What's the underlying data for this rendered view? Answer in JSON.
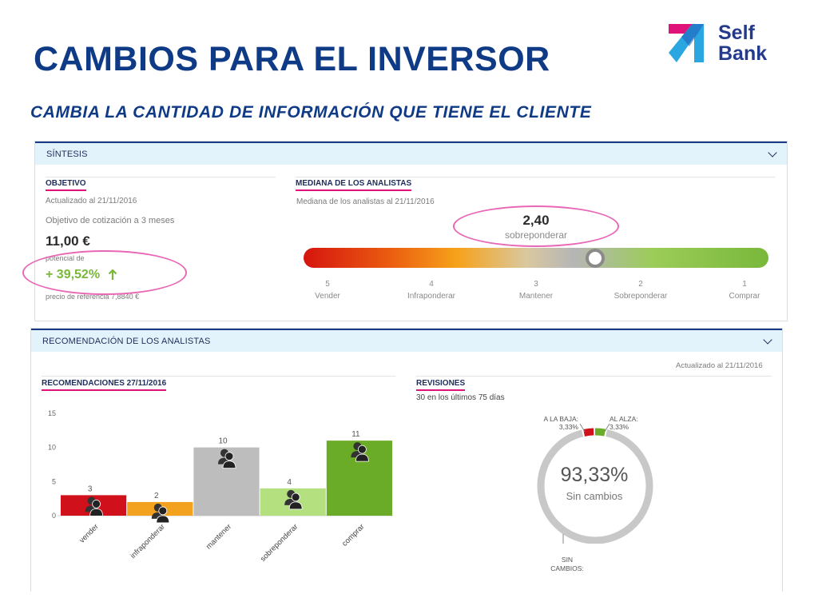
{
  "slide": {
    "title": "CAMBIOS PARA EL INVERSOR",
    "subtitle": "CAMBIA LA CANTIDAD DE INFORMACIÓN QUE TIENE EL CLIENTE"
  },
  "logo": {
    "line1": "Self",
    "line2": "Bank",
    "colors": {
      "magenta": "#e0127a",
      "blue": "#2aa6e0",
      "navy": "#243a8c"
    }
  },
  "synthesis": {
    "header": "SÍNTESIS",
    "objective": {
      "title": "OBJETIVO",
      "updated": "Actualizado al 21/11/2016",
      "target_label": "Objetivo de cotización a 3 meses",
      "target_value": "11,00 €",
      "potential_label": "potencial de",
      "potential_value": "+ 39,52%",
      "potential_icon": "arrow-up-icon",
      "reference": "precio de referencia 7,8840 €"
    },
    "median": {
      "title": "MEDIANA DE LOS ANALISTAS",
      "subtitle": "Mediana de los analistas al 21/11/2016",
      "value": "2,40",
      "value_label": "sobreponderar",
      "value_numeric": 2.4,
      "scale": [
        {
          "number": "5",
          "label": "Vender"
        },
        {
          "number": "4",
          "label": "Infraponderar"
        },
        {
          "number": "3",
          "label": "Mantener"
        },
        {
          "number": "2",
          "label": "Sobreponderar"
        },
        {
          "number": "1",
          "label": "Comprar"
        }
      ]
    }
  },
  "recommendation": {
    "header": "RECOMENDACIÓN DE LOS ANALISTAS",
    "updated": "Actualizado al 21/11/2016",
    "recs_title": "RECOMENDACIONES 27/11/2016",
    "revisions_title": "REVISIONES",
    "revisions_subtitle": "30 en los últimos 75 días",
    "chart_data": {
      "type": "bar",
      "categories": [
        "vender",
        "infraponderar",
        "mantener",
        "sobreponderar",
        "comprar"
      ],
      "values": [
        3,
        2,
        10,
        4,
        11
      ],
      "colors": [
        "#d0111b",
        "#f3a21f",
        "#bdbdbd",
        "#b5e080",
        "#6aab27"
      ],
      "ylim": [
        0,
        15
      ],
      "yticks": [
        "0",
        "5",
        "10",
        "15"
      ],
      "grid": false,
      "icon": "user-group-icon"
    },
    "donut": {
      "value": "93,33%",
      "label": "Sin cambios",
      "down_label": "A LA BAJA:",
      "down_value": "3,33%",
      "up_label": "AL ALZA:",
      "up_value": "3,33%",
      "bottom_label_1": "SIN",
      "bottom_label_2": "CAMBIOS:",
      "shares": {
        "down": 3.33,
        "up": 3.33,
        "unchanged": 93.33
      },
      "colors": {
        "down": "#d0111b",
        "up": "#6aab27",
        "unchanged": "#c8c8c8"
      }
    }
  }
}
